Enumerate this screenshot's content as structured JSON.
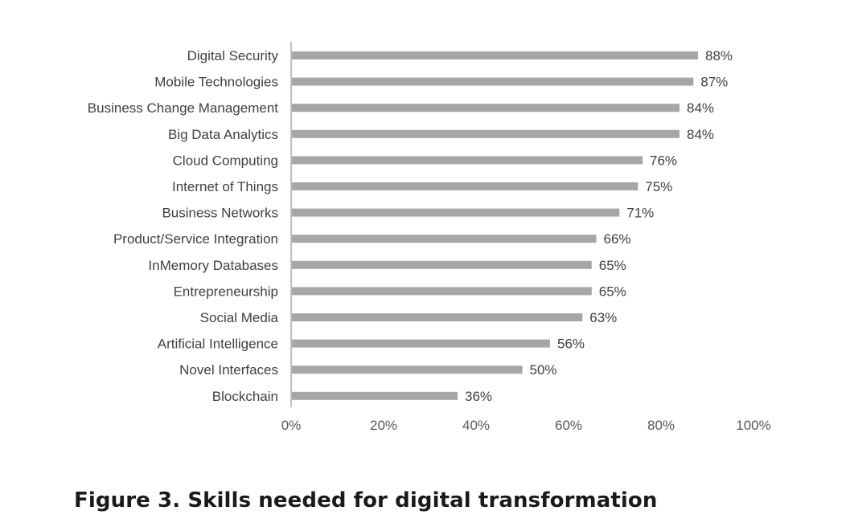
{
  "chart_data": {
    "type": "bar",
    "orientation": "horizontal",
    "categories": [
      "Digital Security",
      "Mobile Technologies",
      "Business Change Management",
      "Big Data Analytics",
      "Cloud Computing",
      "Internet of Things",
      "Business Networks",
      "Product/Service Integration",
      "InMemory Databases",
      "Entrepreneurship",
      "Social Media",
      "Artificial Intelligence",
      "Novel Interfaces",
      "Blockchain"
    ],
    "values": [
      88,
      87,
      84,
      84,
      76,
      75,
      71,
      66,
      65,
      65,
      63,
      56,
      50,
      36
    ],
    "value_labels": [
      "88%",
      "87%",
      "84%",
      "84%",
      "76%",
      "75%",
      "71%",
      "66%",
      "65%",
      "65%",
      "63%",
      "56%",
      "50%",
      "36%"
    ],
    "xlim": [
      0,
      100
    ],
    "x_ticks": [
      0,
      20,
      40,
      60,
      80,
      100
    ],
    "x_tick_labels": [
      "0%",
      "20%",
      "40%",
      "60%",
      "80%",
      "100%"
    ],
    "grid": false,
    "legend": "none",
    "bar_color": "#a6a6a6",
    "axis_color": "#bfbfbf",
    "title": "",
    "xlabel": "",
    "ylabel": ""
  },
  "caption": "Figure 3. Skills needed for digital transformation"
}
